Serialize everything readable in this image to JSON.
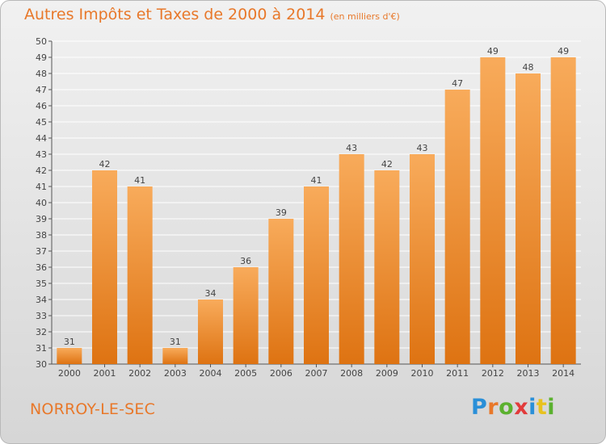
{
  "header": {
    "title": "Autres Impôts et Taxes de 2000 à 2014",
    "unit": "(en milliers d'€)"
  },
  "footer": {
    "commune": "NORROY-LE-SEC",
    "brand_letters": [
      "P",
      "r",
      "o",
      "x",
      "i",
      "t",
      "i"
    ],
    "brand_colors": [
      "#2a8fd8",
      "#e8782a",
      "#5bb12f",
      "#e23b3b",
      "#2a8fd8",
      "#e8c21f",
      "#5bb12f"
    ]
  },
  "colors": {
    "bar_top": "#f8ab5b",
    "bar_bottom": "#de7312",
    "accent": "#e8782a",
    "grid": "#ffffff"
  },
  "chart_data": {
    "type": "bar",
    "title": "Autres Impôts et Taxes de 2000 à 2014",
    "subtitle": "(en milliers d'€)",
    "categories": [
      "2000",
      "2001",
      "2002",
      "2003",
      "2004",
      "2005",
      "2006",
      "2007",
      "2008",
      "2009",
      "2010",
      "2011",
      "2012",
      "2013",
      "2014"
    ],
    "values": [
      31,
      42,
      41,
      31,
      34,
      36,
      39,
      41,
      43,
      42,
      43,
      47,
      49,
      48,
      49
    ],
    "ylim": [
      30,
      50
    ],
    "yticks": [
      30,
      31,
      32,
      33,
      34,
      35,
      36,
      37,
      38,
      39,
      40,
      41,
      42,
      43,
      44,
      45,
      46,
      47,
      48,
      49,
      50
    ],
    "grid": true,
    "data_labels": true
  }
}
